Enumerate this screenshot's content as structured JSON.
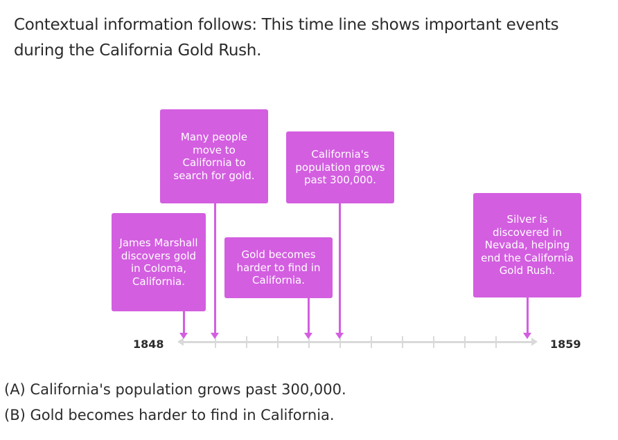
{
  "context": "Contextual information follows: This time line shows important events during the California Gold Rush.",
  "timeline": {
    "start_year": "1848",
    "end_year": "1859",
    "events": [
      {
        "text": "James Marshall discovers gold in Coloma, California."
      },
      {
        "text": "Many people move to California to search for gold."
      },
      {
        "text": "Gold becomes harder to find in California."
      },
      {
        "text": "California's population grows past 300,000."
      },
      {
        "text": "Silver is discovered in Nevada, helping end the California Gold Rush."
      }
    ],
    "colors": {
      "event": "#d35ee0",
      "axis": "#d9d9d9"
    }
  },
  "choices": [
    "(A) California's population grows past 300,000.",
    "(B) Gold becomes harder to find in California."
  ]
}
